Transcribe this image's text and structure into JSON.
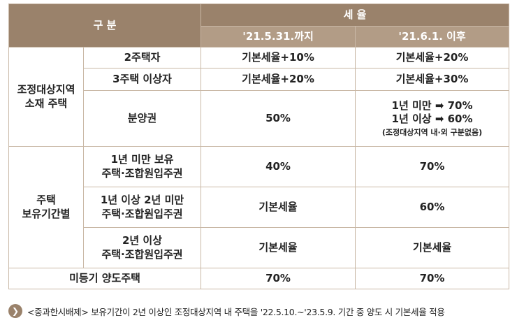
{
  "header": {
    "category": "구 분",
    "tax_rate": "세 율",
    "col_until": "'21.5.31.까지",
    "col_after": "'21.6.1. 이후"
  },
  "groups": {
    "regulated": "조정대상지역\n소재 주택",
    "holding": "주택\n보유기간별"
  },
  "rows": [
    {
      "label": "2주택자",
      "until": "기본세율+10%",
      "after": "기본세율+20%"
    },
    {
      "label": "3주택 이상자",
      "until": "기본세율+20%",
      "after": "기본세율+30%"
    },
    {
      "label": "분양권",
      "until": "50%",
      "after_line1": "1년 미만 ➡ 70%",
      "after_line2": "1년 이상 ➡ 60%",
      "after_note": "(조정대상지역 내·외 구분없음)"
    },
    {
      "label_line1": "1년 미만 보유",
      "label_line2": "주택·조합원입주권",
      "until": "40%",
      "after": "70%"
    },
    {
      "label_line1": "1년 이상 2년 미만",
      "label_line2": "주택·조합원입주권",
      "until": "기본세율",
      "after": "60%"
    },
    {
      "label_line1": "2년 이상",
      "label_line2": "주택·조합원입주권",
      "until": "기본세율",
      "after": "기본세율"
    },
    {
      "label": "미등기 양도주택",
      "until": "70%",
      "after": "70%"
    }
  ],
  "note": {
    "icon": "chevron-right-icon",
    "text": "<중과한시배제> 보유기간이 2년 이상인 조정대상지역 내 주택을 '22.5.10.~'23.5.9. 기간 중 양도 시 기본세율 적용"
  },
  "colors": {
    "header_dark": "#9a826b",
    "header_light": "#b29c86",
    "border": "#c9b8a6"
  }
}
